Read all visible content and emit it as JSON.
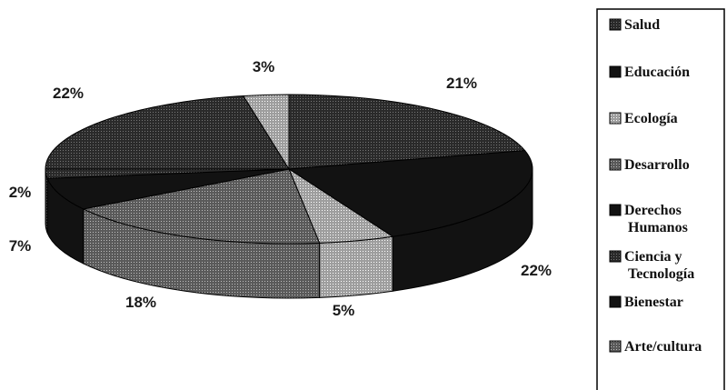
{
  "chart_data": {
    "type": "pie",
    "title": "",
    "legend_position": "right",
    "slices": [
      {
        "label": "Salud",
        "value": 21,
        "value_text": "21%",
        "fill": "dots-dark"
      },
      {
        "label": "Educación",
        "value": 22,
        "value_text": "22%",
        "fill": "black"
      },
      {
        "label": "Ecología",
        "value": 5,
        "value_text": "5%",
        "fill": "dots-light"
      },
      {
        "label": "Desarrollo",
        "value": 18,
        "value_text": "18%",
        "fill": "dots-mid"
      },
      {
        "label": "Derechos Humanos",
        "value": 7,
        "value_text": "7%",
        "fill": "black"
      },
      {
        "label": "Ciencia y Tecnología",
        "value": 2,
        "value_text": "2%",
        "fill": "dots-dark"
      },
      {
        "label": "Bienestar",
        "value": 22,
        "value_text": "22%",
        "fill": "dots-dark"
      },
      {
        "label": "Arte/cultura",
        "value": 3,
        "value_text": "3%",
        "fill": "dots-light"
      }
    ]
  },
  "legend": {
    "items": [
      {
        "lines": [
          "Salud"
        ],
        "fill": "dark"
      },
      {
        "lines": [
          "Educación"
        ],
        "fill": "black"
      },
      {
        "lines": [
          "Ecología"
        ],
        "fill": "light"
      },
      {
        "lines": [
          "Desarrollo"
        ],
        "fill": "mid"
      },
      {
        "lines": [
          "Derechos",
          "Humanos"
        ],
        "fill": "black"
      },
      {
        "lines": [
          "Ciencia y",
          "Tecnología"
        ],
        "fill": "dark"
      },
      {
        "lines": [
          "Bienestar"
        ],
        "fill": "black"
      },
      {
        "lines": [
          "Arte/cultura"
        ],
        "fill": "mid"
      }
    ]
  },
  "colors": {
    "black": "#121212",
    "dark": "#2e2e2e",
    "mid": "#5e5e5e",
    "light": "#a8a8a8",
    "background": "#ffffff"
  }
}
